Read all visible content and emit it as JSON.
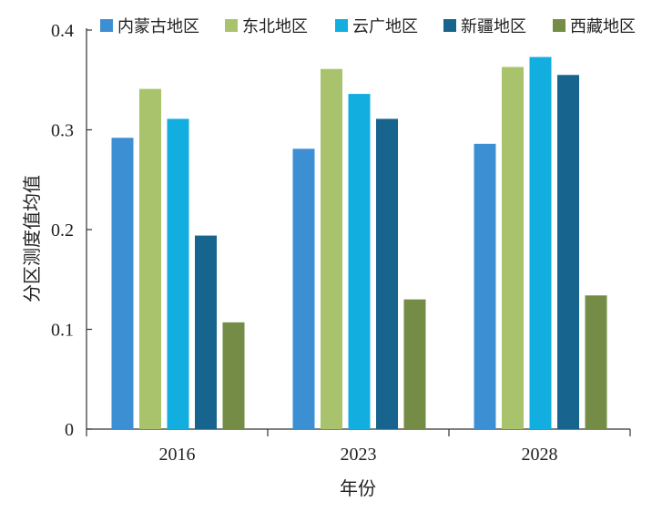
{
  "chart_data": {
    "type": "bar",
    "xlabel": "年份",
    "ylabel": "分区测度值均值",
    "categories": [
      "2016",
      "2023",
      "2028"
    ],
    "ylim": [
      0,
      0.4
    ],
    "yticks": [
      0,
      0.1,
      0.2,
      0.3,
      0.4
    ],
    "ytick_labels": [
      "0",
      "0.1",
      "0.2",
      "0.3",
      "0.4"
    ],
    "legend_position": "top",
    "grid": false,
    "series": [
      {
        "name": "内蒙古地区",
        "color": "#3d8fd4",
        "values": [
          0.292,
          0.281,
          0.286
        ]
      },
      {
        "name": "东北地区",
        "color": "#a9c36d",
        "values": [
          0.341,
          0.361,
          0.363
        ]
      },
      {
        "name": "云广地区",
        "color": "#12aee0",
        "values": [
          0.311,
          0.336,
          0.373
        ]
      },
      {
        "name": "新疆地区",
        "color": "#17648e",
        "values": [
          0.194,
          0.311,
          0.355
        ]
      },
      {
        "name": "西藏地区",
        "color": "#748c46",
        "values": [
          0.107,
          0.13,
          0.134
        ]
      }
    ]
  }
}
